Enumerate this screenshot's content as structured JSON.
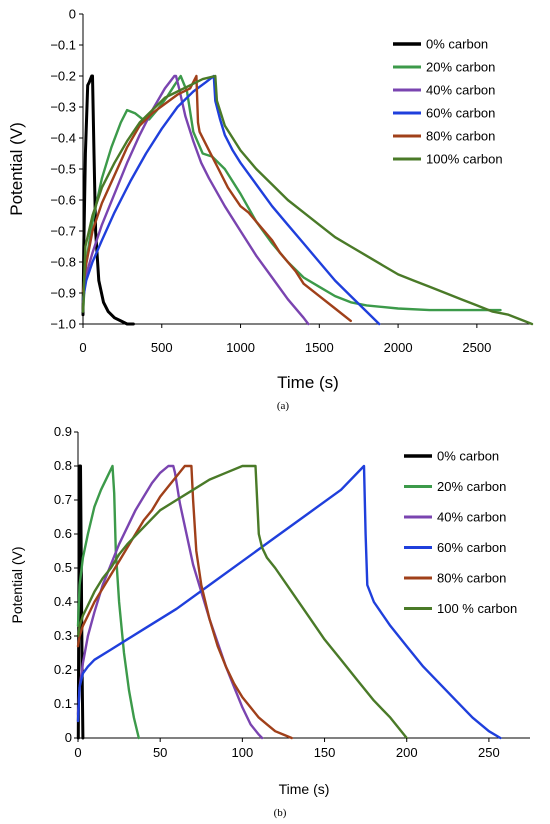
{
  "chart_data": [
    {
      "id": "a",
      "type": "line",
      "panel_label": "(a)",
      "xlabel": "Time (s)",
      "ylabel": "Potential (V)",
      "xlim": [
        0,
        2850
      ],
      "ylim": [
        -1.0,
        0
      ],
      "xticks": [
        0,
        500,
        1000,
        1500,
        2000,
        2500
      ],
      "xtick_labels": [
        "0",
        "500",
        "1000",
        "1500",
        "2000",
        "2500"
      ],
      "yticks": [
        0,
        -0.1,
        -0.2,
        -0.3,
        -0.4,
        -0.5,
        -0.6,
        -0.7,
        -0.8,
        -0.9,
        -1.0
      ],
      "ytick_labels": [
        "0",
        "−0.1",
        "−0.2",
        "−0.3",
        "−0.4",
        "−0.5",
        "−0.6",
        "−0.7",
        "−0.8",
        "−0.9",
        "−1.0"
      ],
      "grid": false,
      "legend_position": "top-right",
      "series": [
        {
          "name": "0% carbon",
          "color": "#000000",
          "x": [
            0,
            5,
            15,
            30,
            40,
            55,
            60,
            70,
            80,
            100,
            130,
            160,
            200,
            240,
            280,
            320
          ],
          "y": [
            -0.97,
            -0.75,
            -0.45,
            -0.23,
            -0.22,
            -0.2,
            -0.2,
            -0.45,
            -0.7,
            -0.86,
            -0.93,
            -0.96,
            -0.98,
            -0.99,
            -1.0,
            -1.0
          ]
        },
        {
          "name": "20% carbon",
          "color": "#3c9a4a",
          "x": [
            0,
            20,
            60,
            120,
            180,
            240,
            280,
            330,
            380,
            420,
            470,
            530,
            580,
            620,
            660,
            700,
            760,
            820,
            900,
            1000,
            1100,
            1200,
            1300,
            1400,
            1500,
            1600,
            1700,
            1800,
            2000,
            2200,
            2400,
            2650
          ],
          "y": [
            -0.96,
            -0.8,
            -0.67,
            -0.53,
            -0.43,
            -0.35,
            -0.31,
            -0.32,
            -0.34,
            -0.34,
            -0.31,
            -0.27,
            -0.23,
            -0.2,
            -0.25,
            -0.38,
            -0.45,
            -0.46,
            -0.5,
            -0.58,
            -0.67,
            -0.74,
            -0.8,
            -0.85,
            -0.88,
            -0.91,
            -0.93,
            -0.94,
            -0.95,
            -0.955,
            -0.955,
            -0.955
          ]
        },
        {
          "name": "40% carbon",
          "color": "#7a44b0",
          "x": [
            0,
            15,
            60,
            120,
            200,
            280,
            360,
            440,
            520,
            580,
            590,
            610,
            650,
            700,
            750,
            800,
            900,
            1000,
            1100,
            1200,
            1300,
            1400,
            1430
          ],
          "y": [
            -0.93,
            -0.85,
            -0.77,
            -0.68,
            -0.58,
            -0.48,
            -0.39,
            -0.31,
            -0.24,
            -0.2,
            -0.2,
            -0.24,
            -0.33,
            -0.41,
            -0.48,
            -0.53,
            -0.62,
            -0.7,
            -0.78,
            -0.85,
            -0.92,
            -0.98,
            -1.0
          ]
        },
        {
          "name": "60% carbon",
          "color": "#1f3fdc",
          "x": [
            0,
            20,
            60,
            120,
            200,
            300,
            400,
            500,
            600,
            700,
            780,
            830,
            840,
            870,
            900,
            950,
            1000,
            1100,
            1200,
            1300,
            1400,
            1500,
            1600,
            1700,
            1800,
            1880
          ],
          "y": [
            -0.92,
            -0.86,
            -0.8,
            -0.73,
            -0.64,
            -0.54,
            -0.45,
            -0.37,
            -0.3,
            -0.25,
            -0.22,
            -0.2,
            -0.28,
            -0.34,
            -0.39,
            -0.44,
            -0.48,
            -0.55,
            -0.62,
            -0.68,
            -0.74,
            -0.8,
            -0.86,
            -0.91,
            -0.96,
            -1.0
          ]
        },
        {
          "name": "80% carbon",
          "color": "#a0401a",
          "x": [
            0,
            15,
            60,
            120,
            200,
            280,
            360,
            440,
            520,
            600,
            680,
            720,
            730,
            740,
            800,
            860,
            920,
            960,
            1000,
            1050,
            1100,
            1200,
            1250,
            1300,
            1350,
            1400,
            1500,
            1600,
            1700
          ],
          "y": [
            -0.9,
            -0.82,
            -0.7,
            -0.61,
            -0.52,
            -0.43,
            -0.36,
            -0.32,
            -0.29,
            -0.26,
            -0.24,
            -0.2,
            -0.35,
            -0.38,
            -0.44,
            -0.5,
            -0.56,
            -0.59,
            -0.62,
            -0.64,
            -0.67,
            -0.73,
            -0.77,
            -0.8,
            -0.83,
            -0.87,
            -0.91,
            -0.95,
            -0.99
          ]
        },
        {
          "name": "100% carbon",
          "color": "#4a7a28",
          "x": [
            0,
            15,
            60,
            120,
            200,
            280,
            360,
            440,
            520,
            600,
            680,
            760,
            840,
            850,
            900,
            1000,
            1100,
            1200,
            1300,
            1400,
            1500,
            1600,
            1700,
            1800,
            1900,
            2000,
            2100,
            2200,
            2300,
            2400,
            2500,
            2600,
            2700,
            2800,
            2850
          ],
          "y": [
            -0.96,
            -0.75,
            -0.65,
            -0.56,
            -0.48,
            -0.41,
            -0.35,
            -0.31,
            -0.27,
            -0.25,
            -0.23,
            -0.21,
            -0.2,
            -0.28,
            -0.36,
            -0.44,
            -0.5,
            -0.55,
            -0.6,
            -0.64,
            -0.68,
            -0.72,
            -0.75,
            -0.78,
            -0.81,
            -0.84,
            -0.86,
            -0.88,
            -0.9,
            -0.92,
            -0.94,
            -0.96,
            -0.97,
            -0.99,
            -1.0
          ]
        }
      ]
    },
    {
      "id": "b",
      "type": "line",
      "panel_label": "(b)",
      "xlabel": "Time (s)",
      "ylabel": "Potential (V)",
      "xlim": [
        0,
        275
      ],
      "ylim": [
        0,
        0.9
      ],
      "xticks": [
        0,
        50,
        100,
        150,
        200,
        250
      ],
      "xtick_labels": [
        "0",
        "50",
        "100",
        "150",
        "200",
        "250"
      ],
      "yticks": [
        0,
        0.1,
        0.2,
        0.3,
        0.4,
        0.5,
        0.6,
        0.7,
        0.8,
        0.9
      ],
      "ytick_labels": [
        "0",
        "0.1",
        "0.2",
        "0.3",
        "0.4",
        "0.5",
        "0.6",
        "0.7",
        "0.8",
        "0.9"
      ],
      "grid": false,
      "legend_position": "top-right",
      "series": [
        {
          "name": "0% carbon",
          "color": "#000000",
          "x": [
            0.2,
            0.5,
            1,
            1.5,
            2,
            2.5,
            3
          ],
          "y": [
            0.0,
            0.4,
            0.8,
            0.8,
            0.5,
            0.2,
            0.0
          ]
        },
        {
          "name": "20% carbon",
          "color": "#3c9a4a",
          "x": [
            0,
            1,
            3,
            6,
            10,
            14,
            18,
            21,
            22,
            23,
            25,
            28,
            31,
            34,
            37
          ],
          "y": [
            0.33,
            0.45,
            0.53,
            0.6,
            0.68,
            0.73,
            0.77,
            0.8,
            0.72,
            0.55,
            0.4,
            0.25,
            0.14,
            0.06,
            0.0
          ]
        },
        {
          "name": "40% carbon",
          "color": "#7a44b0",
          "x": [
            0,
            1,
            3,
            6,
            10,
            15,
            20,
            25,
            30,
            35,
            40,
            45,
            50,
            55,
            58,
            59,
            62,
            66,
            70,
            75,
            80,
            85,
            90,
            95,
            100,
            105,
            110,
            112
          ],
          "y": [
            0.07,
            0.15,
            0.22,
            0.3,
            0.37,
            0.45,
            0.51,
            0.57,
            0.62,
            0.67,
            0.71,
            0.75,
            0.78,
            0.8,
            0.8,
            0.78,
            0.69,
            0.6,
            0.51,
            0.43,
            0.35,
            0.28,
            0.21,
            0.15,
            0.09,
            0.04,
            0.01,
            0.0
          ]
        },
        {
          "name": "60% carbon",
          "color": "#1f3fdc",
          "x": [
            0,
            1,
            3,
            6,
            10,
            20,
            40,
            60,
            80,
            100,
            120,
            140,
            160,
            174,
            175,
            176,
            180,
            190,
            200,
            210,
            220,
            230,
            240,
            250,
            257
          ],
          "y": [
            0.05,
            0.15,
            0.19,
            0.21,
            0.23,
            0.26,
            0.32,
            0.38,
            0.45,
            0.52,
            0.59,
            0.66,
            0.73,
            0.8,
            0.6,
            0.45,
            0.4,
            0.33,
            0.27,
            0.21,
            0.16,
            0.11,
            0.06,
            0.02,
            0.0
          ]
        },
        {
          "name": "80% carbon",
          "color": "#a0401a",
          "x": [
            0,
            1,
            3,
            6,
            10,
            15,
            20,
            25,
            30,
            35,
            40,
            45,
            50,
            55,
            60,
            65,
            69,
            70,
            72,
            75,
            80,
            85,
            90,
            95,
            100,
            105,
            110,
            115,
            120,
            125,
            130
          ],
          "y": [
            0.27,
            0.3,
            0.33,
            0.36,
            0.4,
            0.44,
            0.48,
            0.52,
            0.56,
            0.6,
            0.64,
            0.67,
            0.71,
            0.74,
            0.77,
            0.8,
            0.8,
            0.7,
            0.55,
            0.45,
            0.35,
            0.27,
            0.21,
            0.16,
            0.12,
            0.09,
            0.06,
            0.04,
            0.02,
            0.01,
            0.0
          ]
        },
        {
          "name": "100 % carbon",
          "color": "#4a7a28",
          "x": [
            0,
            1,
            3,
            6,
            10,
            15,
            20,
            25,
            30,
            40,
            50,
            60,
            70,
            80,
            90,
            100,
            108,
            110,
            112,
            115,
            120,
            130,
            140,
            150,
            160,
            170,
            180,
            190,
            200
          ],
          "y": [
            0.3,
            0.33,
            0.36,
            0.39,
            0.43,
            0.47,
            0.5,
            0.54,
            0.57,
            0.62,
            0.67,
            0.7,
            0.73,
            0.76,
            0.78,
            0.8,
            0.8,
            0.6,
            0.56,
            0.53,
            0.5,
            0.43,
            0.36,
            0.29,
            0.23,
            0.17,
            0.11,
            0.06,
            0.0
          ]
        }
      ]
    }
  ]
}
